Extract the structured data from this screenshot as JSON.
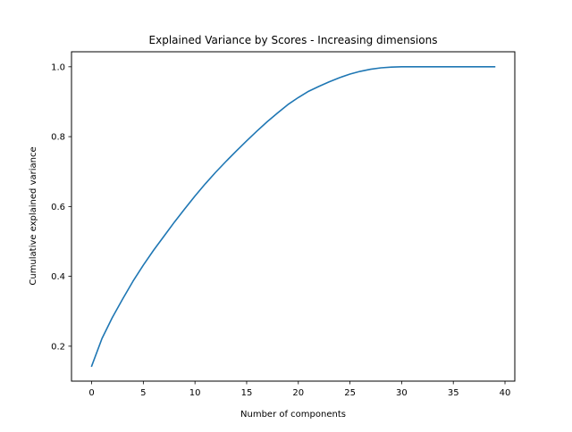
{
  "chart_data": {
    "type": "line",
    "title": "Explained Variance by Scores - Increasing dimensions",
    "xlabel": "Number of components",
    "ylabel": "Cumulative explained variance",
    "xlim": [
      -1.95,
      40.95
    ],
    "ylim": [
      0.1,
      1.043
    ],
    "xticks": [
      0,
      5,
      10,
      15,
      20,
      25,
      30,
      35,
      40
    ],
    "yticks": [
      0.2,
      0.4,
      0.6,
      0.8,
      1.0
    ],
    "xtick_labels": [
      "0",
      "5",
      "10",
      "15",
      "20",
      "25",
      "30",
      "35",
      "40"
    ],
    "ytick_labels": [
      "0.2",
      "0.4",
      "0.6",
      "0.8",
      "1.0"
    ],
    "grid": false,
    "legend": "none",
    "line_color": "#1f77b4",
    "series": [
      {
        "x": [
          0,
          1,
          2,
          3,
          4,
          5,
          6,
          7,
          8,
          9,
          10,
          11,
          12,
          13,
          14,
          15,
          16,
          17,
          18,
          19,
          20,
          21,
          22,
          23,
          24,
          25,
          26,
          27,
          28,
          29,
          30,
          31,
          32,
          33,
          34,
          35,
          36,
          37,
          38,
          39
        ],
        "values": [
          0.143,
          0.222,
          0.282,
          0.335,
          0.386,
          0.432,
          0.475,
          0.515,
          0.555,
          0.593,
          0.63,
          0.665,
          0.698,
          0.729,
          0.759,
          0.788,
          0.816,
          0.843,
          0.868,
          0.892,
          0.912,
          0.93,
          0.944,
          0.957,
          0.969,
          0.979,
          0.987,
          0.993,
          0.997,
          0.999,
          1.0,
          1.0,
          1.0,
          1.0,
          1.0,
          1.0,
          1.0,
          1.0,
          1.0,
          1.0
        ]
      }
    ]
  }
}
